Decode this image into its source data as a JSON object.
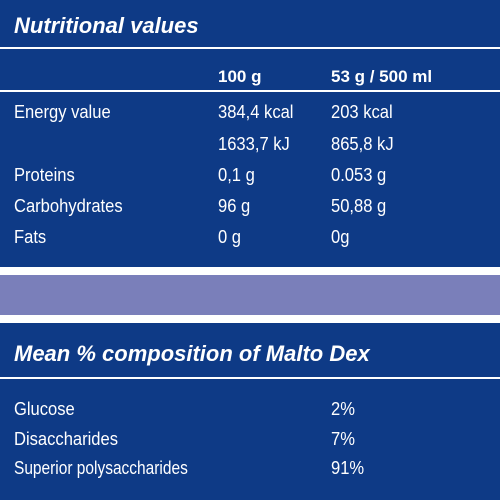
{
  "nutrition": {
    "title": "Nutritional values",
    "col_per_100": "100 g",
    "col_per_serving": "53 g / 500 ml",
    "rows": [
      {
        "label": "Energy value",
        "per_100": "384,4 kcal",
        "per_serving": "203 kcal"
      },
      {
        "label": "",
        "per_100": "1633,7 kJ",
        "per_serving": "865,8 kJ"
      },
      {
        "label": "Proteins",
        "per_100": "0,1 g",
        "per_serving": "0.053 g"
      },
      {
        "label": "Carbohydrates",
        "per_100": "96 g",
        "per_serving": "50,88 g"
      },
      {
        "label": "Fats",
        "per_100": "0 g",
        "per_serving": "0g"
      }
    ]
  },
  "composition": {
    "title": "Mean % composition of Malto Dex",
    "rows": [
      {
        "label": "Glucose",
        "value": "2%"
      },
      {
        "label": "Disaccharides",
        "value": "7%"
      },
      {
        "label": "Superior polysaccharides",
        "value": "91%"
      }
    ]
  },
  "colors": {
    "background": "#0e3a86",
    "stripe_white": "#ffffff",
    "stripe_lavender": "#7a7fba"
  }
}
